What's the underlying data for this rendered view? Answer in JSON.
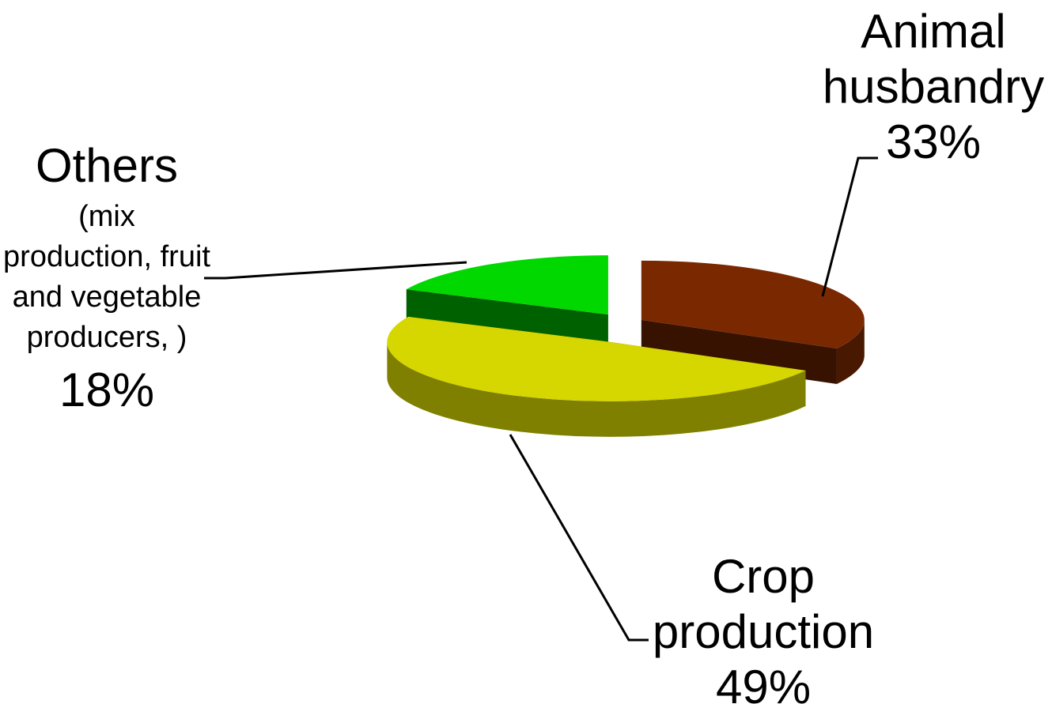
{
  "chart_data": {
    "type": "pie3d",
    "categories": [
      "Animal husbandry",
      "Crop production",
      "Others"
    ],
    "values": [
      33,
      49,
      18
    ],
    "value_labels": [
      "33%",
      "49%",
      "18%"
    ],
    "colors": [
      "#7a2800",
      "#d6d600",
      "#00d800"
    ],
    "annotations": [
      "(mix production, fruit and vegetable producers, )"
    ]
  }
}
